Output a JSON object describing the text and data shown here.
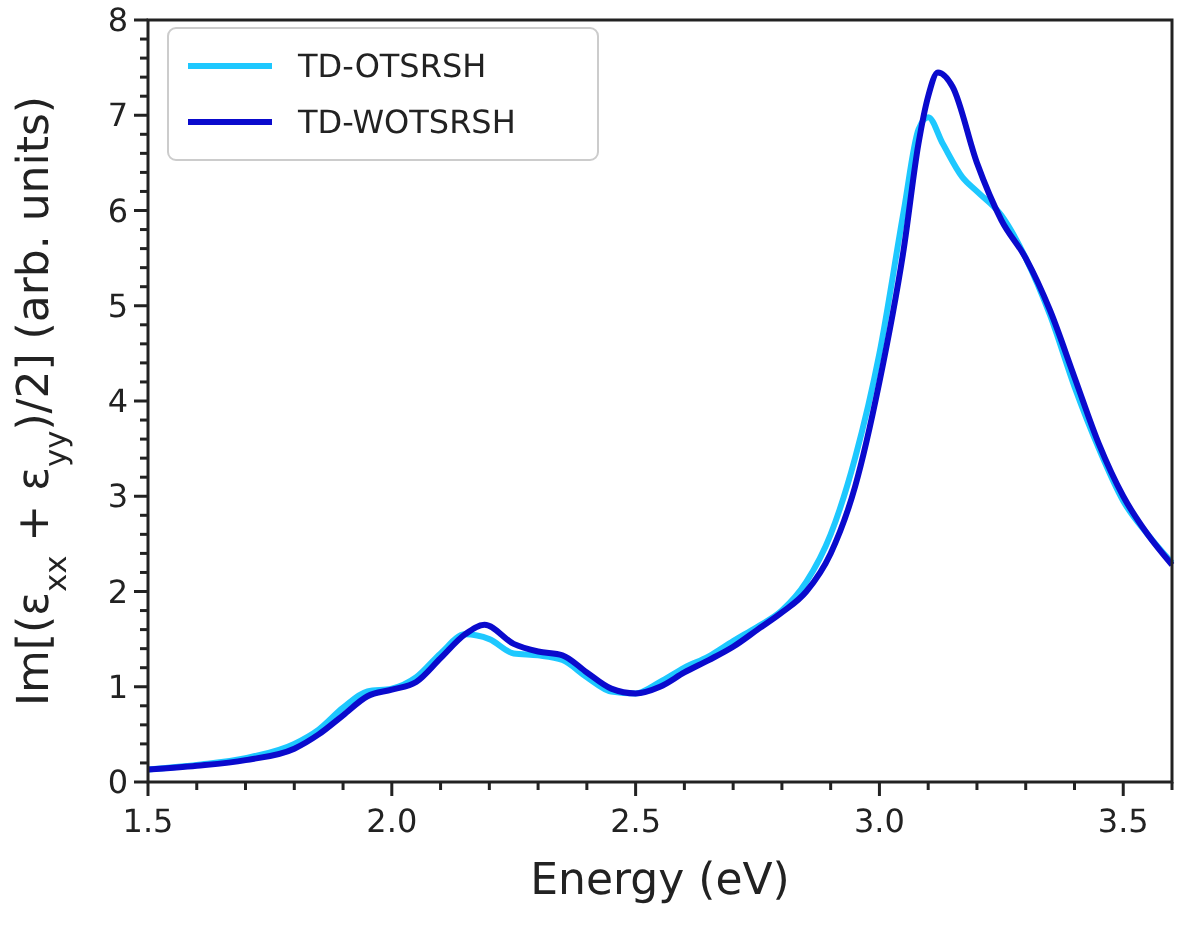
{
  "chart_data": {
    "type": "line",
    "xlabel": "Energy (eV)",
    "ylabel": "Im[(ε$_{xx}$ + ε$_{yy}$)/2] (arb. units)",
    "xlim": [
      1.5,
      3.6
    ],
    "ylim": [
      0,
      8
    ],
    "xticks": [
      1.5,
      {
        "value": 1.6,
        "label": null
      },
      {
        "value": 1.7,
        "label": null
      },
      {
        "value": 1.8,
        "label": null
      },
      {
        "value": 1.9,
        "label": null
      },
      {
        "value": 2.0,
        "label": "2.0"
      },
      {
        "value": 2.1,
        "label": null
      },
      {
        "value": 2.2,
        "label": null
      },
      {
        "value": 2.3,
        "label": null
      },
      {
        "value": 2.4,
        "label": null
      },
      2.5,
      {
        "value": 2.6,
        "label": null
      },
      {
        "value": 2.7,
        "label": null
      },
      {
        "value": 2.8,
        "label": null
      },
      {
        "value": 2.9,
        "label": null
      },
      {
        "value": 3.0,
        "label": "3.0"
      },
      {
        "value": 3.1,
        "label": null
      },
      {
        "value": 3.2,
        "label": null
      },
      {
        "value": 3.3,
        "label": null
      },
      {
        "value": 3.4,
        "label": null
      },
      3.5,
      {
        "value": 3.6,
        "label": null
      }
    ],
    "yticks": [
      0,
      {
        "value": 0.2,
        "label": null
      },
      {
        "value": 0.4,
        "label": null
      },
      {
        "value": 0.6,
        "label": null
      },
      {
        "value": 0.8,
        "label": null
      },
      1,
      {
        "value": 1.2,
        "label": null
      },
      {
        "value": 1.4,
        "label": null
      },
      {
        "value": 1.6,
        "label": null
      },
      {
        "value": 1.8,
        "label": null
      },
      2,
      {
        "value": 2.2,
        "label": null
      },
      {
        "value": 2.4,
        "label": null
      },
      {
        "value": 2.6,
        "label": null
      },
      {
        "value": 2.8,
        "label": null
      },
      3,
      {
        "value": 3.2,
        "label": null
      },
      {
        "value": 3.4,
        "label": null
      },
      {
        "value": 3.6,
        "label": null
      },
      {
        "value": 3.8,
        "label": null
      },
      4,
      {
        "value": 4.2,
        "label": null
      },
      {
        "value": 4.4,
        "label": null
      },
      {
        "value": 4.6,
        "label": null
      },
      {
        "value": 4.8,
        "label": null
      },
      5,
      {
        "value": 5.2,
        "label": null
      },
      {
        "value": 5.4,
        "label": null
      },
      {
        "value": 5.6,
        "label": null
      },
      {
        "value": 5.8,
        "label": null
      },
      6,
      {
        "value": 6.2,
        "label": null
      },
      {
        "value": 6.4,
        "label": null
      },
      {
        "value": 6.6,
        "label": null
      },
      {
        "value": 6.8,
        "label": null
      },
      7,
      {
        "value": 7.2,
        "label": null
      },
      {
        "value": 7.4,
        "label": null
      },
      {
        "value": 7.6,
        "label": null
      },
      {
        "value": 7.8,
        "label": null
      },
      8
    ],
    "legend": "top left",
    "grid": false,
    "marker": "none",
    "line_style": "solid",
    "series": [
      {
        "name": "TD-OTSRSH",
        "color": "#1ec8ff",
        "x": [
          1.5,
          1.6,
          1.7,
          1.8,
          1.85,
          1.9,
          1.95,
          2.0,
          2.05,
          2.1,
          2.15,
          2.2,
          2.25,
          2.3,
          2.35,
          2.4,
          2.45,
          2.5,
          2.55,
          2.6,
          2.65,
          2.7,
          2.75,
          2.8,
          2.85,
          2.9,
          2.95,
          3.0,
          3.05,
          3.08,
          3.1,
          3.13,
          3.17,
          3.2,
          3.25,
          3.3,
          3.35,
          3.4,
          3.45,
          3.5,
          3.55,
          3.6
        ],
        "values": [
          0.13,
          0.18,
          0.25,
          0.4,
          0.55,
          0.78,
          0.95,
          0.98,
          1.1,
          1.35,
          1.55,
          1.5,
          1.35,
          1.33,
          1.28,
          1.1,
          0.95,
          0.93,
          1.05,
          1.2,
          1.32,
          1.48,
          1.63,
          1.8,
          2.1,
          2.6,
          3.4,
          4.5,
          6.0,
          6.85,
          6.98,
          6.7,
          6.35,
          6.2,
          5.95,
          5.5,
          4.9,
          4.15,
          3.5,
          2.95,
          2.6,
          2.3
        ]
      },
      {
        "name": "TD-WOTSRSH",
        "color": "#0a0acd",
        "x": [
          1.5,
          1.6,
          1.7,
          1.8,
          1.85,
          1.9,
          1.95,
          2.0,
          2.05,
          2.1,
          2.15,
          2.19,
          2.25,
          2.3,
          2.35,
          2.4,
          2.45,
          2.5,
          2.55,
          2.6,
          2.65,
          2.7,
          2.75,
          2.8,
          2.85,
          2.9,
          2.95,
          3.0,
          3.05,
          3.08,
          3.1,
          3.12,
          3.15,
          3.2,
          3.25,
          3.3,
          3.35,
          3.4,
          3.45,
          3.5,
          3.55,
          3.6
        ],
        "values": [
          0.13,
          0.17,
          0.23,
          0.35,
          0.5,
          0.7,
          0.9,
          0.97,
          1.05,
          1.3,
          1.55,
          1.65,
          1.45,
          1.37,
          1.33,
          1.15,
          0.98,
          0.93,
          1.0,
          1.15,
          1.28,
          1.42,
          1.6,
          1.78,
          2.0,
          2.4,
          3.1,
          4.2,
          5.6,
          6.7,
          7.2,
          7.45,
          7.3,
          6.5,
          5.9,
          5.5,
          4.95,
          4.25,
          3.55,
          3.0,
          2.6,
          2.28
        ]
      }
    ]
  }
}
